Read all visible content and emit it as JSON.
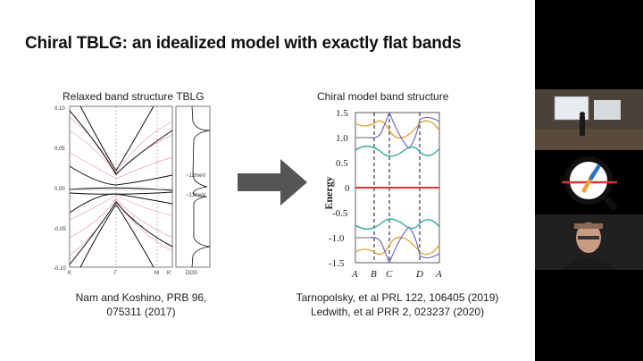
{
  "slide": {
    "title": "Chiral TBLG: an idealized model with exactly flat bands",
    "left_caption": "Relaxed band structure TBLG",
    "right_caption": "Chiral model band structure",
    "left_citation_1": "Nam and Koshino, PRB 96,",
    "left_citation_2": "075311 (2017)",
    "right_citation_1": "Tarnopolsky, et al PRL 122, 106405 (2019)",
    "right_citation_2": "Ledwith, et al PRR 2, 023237 (2020)"
  },
  "left_plot": {
    "y_ticks": [
      "0.10",
      "0.05",
      "0.00",
      "-0.05",
      "-0.10"
    ],
    "x_ticks": [
      "K",
      "Γ",
      "M",
      "K'"
    ],
    "dos_label": "DOS",
    "gap_upper": "~12meV",
    "gap_lower": "~13meV"
  },
  "right_plot": {
    "ylabel": "Energy",
    "y_ticks": [
      "1.5",
      "1.0",
      "0.5",
      "0",
      "-0.5",
      "-1.0",
      "-1.5"
    ],
    "x_ticks": [
      "A",
      "B",
      "C",
      "D",
      "A"
    ],
    "colors": {
      "flat": "#e0332d",
      "gold": "#d9a431",
      "purple": "#7b68b8",
      "teal": "#3aa8a0",
      "gray": "#888888"
    }
  },
  "icons": {
    "arrow": "right-arrow-icon",
    "logo": "q-logo-icon"
  }
}
